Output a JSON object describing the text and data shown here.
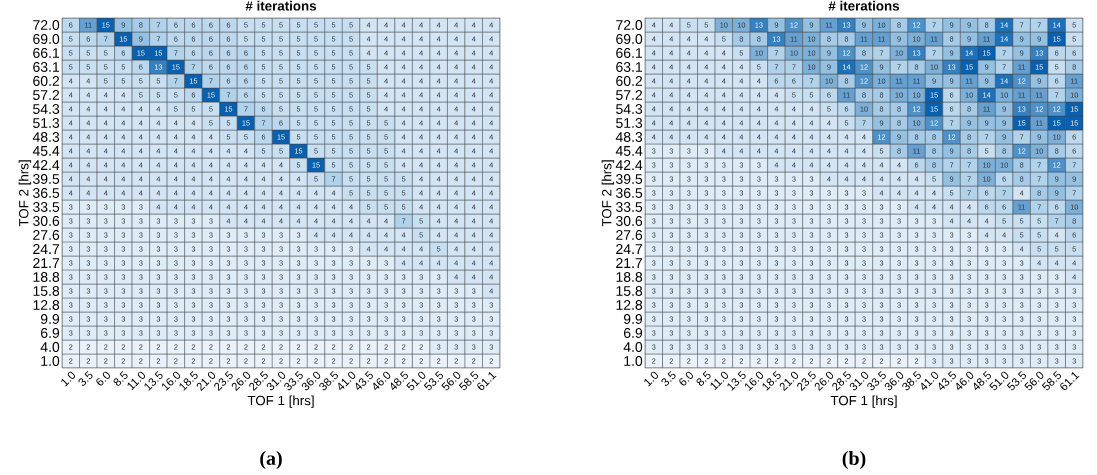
{
  "chart_data": [
    {
      "type": "heatmap",
      "title": "# iterations",
      "xlabel": "TOF 1 [hrs]",
      "ylabel": "TOF 2 [hrs]",
      "annotations": [
        "(a)"
      ],
      "data_labels": true,
      "categories": [
        "1.0",
        "3.5",
        "6.0",
        "8.5",
        "11.0",
        "13.5",
        "16.0",
        "18.5",
        "21.0",
        "23.5",
        "26.0",
        "28.5",
        "31.0",
        "33.5",
        "36.0",
        "38.5",
        "41.0",
        "43.5",
        "46.0",
        "48.5",
        "51.0",
        "53.5",
        "56.0",
        "58.5",
        "61.1"
      ],
      "y_categories": [
        "72.0",
        "69.0",
        "66.1",
        "63.1",
        "60.2",
        "57.2",
        "54.3",
        "51.3",
        "48.3",
        "45.4",
        "42.4",
        "39.5",
        "36.5",
        "33.5",
        "30.6",
        "27.6",
        "24.7",
        "21.7",
        "18.8",
        "15.8",
        "12.8",
        "9.9",
        "6.9",
        "4.0",
        "1.0"
      ],
      "cells": [
        [
          6,
          11,
          15,
          9,
          8,
          7,
          6,
          6,
          6,
          6,
          5,
          5,
          5,
          5,
          5,
          5,
          5,
          4,
          4,
          4,
          4,
          4,
          4,
          4,
          4
        ],
        [
          5,
          6,
          7,
          15,
          9,
          7,
          6,
          6,
          6,
          6,
          5,
          5,
          5,
          5,
          5,
          5,
          5,
          4,
          4,
          4,
          4,
          4,
          4,
          4,
          4
        ],
        [
          5,
          5,
          5,
          6,
          15,
          15,
          7,
          6,
          6,
          6,
          6,
          5,
          5,
          5,
          5,
          5,
          5,
          4,
          4,
          4,
          4,
          4,
          4,
          4,
          4
        ],
        [
          5,
          5,
          5,
          5,
          6,
          13,
          15,
          7,
          6,
          6,
          6,
          5,
          5,
          5,
          5,
          5,
          5,
          5,
          4,
          4,
          4,
          4,
          4,
          4,
          4
        ],
        [
          4,
          4,
          5,
          5,
          5,
          5,
          7,
          15,
          7,
          6,
          6,
          5,
          5,
          5,
          5,
          5,
          5,
          5,
          4,
          4,
          4,
          4,
          4,
          4,
          4
        ],
        [
          4,
          4,
          4,
          4,
          5,
          5,
          5,
          6,
          15,
          7,
          6,
          5,
          5,
          5,
          5,
          5,
          5,
          5,
          4,
          4,
          4,
          4,
          4,
          4,
          4
        ],
        [
          4,
          4,
          4,
          4,
          4,
          4,
          5,
          5,
          5,
          15,
          7,
          6,
          5,
          5,
          5,
          5,
          5,
          5,
          4,
          4,
          4,
          4,
          4,
          4,
          4
        ],
        [
          4,
          4,
          4,
          4,
          4,
          4,
          4,
          4,
          5,
          5,
          15,
          7,
          6,
          5,
          5,
          5,
          5,
          5,
          5,
          4,
          4,
          4,
          4,
          4,
          4
        ],
        [
          4,
          4,
          4,
          4,
          4,
          4,
          4,
          4,
          4,
          5,
          5,
          6,
          15,
          5,
          5,
          5,
          5,
          5,
          5,
          4,
          4,
          4,
          4,
          4,
          4
        ],
        [
          4,
          4,
          4,
          4,
          4,
          4,
          4,
          4,
          4,
          4,
          4,
          5,
          5,
          15,
          5,
          5,
          5,
          5,
          5,
          4,
          4,
          4,
          4,
          4,
          4
        ],
        [
          4,
          4,
          4,
          4,
          4,
          4,
          4,
          4,
          4,
          4,
          4,
          4,
          4,
          5,
          15,
          5,
          5,
          5,
          5,
          4,
          4,
          4,
          4,
          4,
          4
        ],
        [
          4,
          4,
          4,
          4,
          4,
          4,
          4,
          4,
          4,
          4,
          4,
          4,
          4,
          4,
          5,
          7,
          5,
          5,
          5,
          5,
          4,
          4,
          4,
          4,
          4
        ],
        [
          4,
          4,
          4,
          4,
          4,
          4,
          4,
          4,
          4,
          4,
          4,
          4,
          4,
          4,
          4,
          4,
          5,
          5,
          5,
          5,
          4,
          4,
          4,
          4,
          4
        ],
        [
          3,
          3,
          3,
          3,
          3,
          4,
          4,
          4,
          4,
          4,
          4,
          4,
          4,
          4,
          4,
          4,
          4,
          5,
          5,
          5,
          4,
          4,
          4,
          4,
          4
        ],
        [
          3,
          3,
          3,
          3,
          3,
          3,
          3,
          3,
          3,
          4,
          4,
          4,
          4,
          4,
          4,
          4,
          4,
          4,
          4,
          7,
          5,
          4,
          4,
          4,
          4
        ],
        [
          3,
          3,
          3,
          3,
          3,
          3,
          3,
          3,
          3,
          3,
          3,
          3,
          3,
          3,
          4,
          4,
          4,
          4,
          4,
          4,
          5,
          4,
          4,
          4,
          4
        ],
        [
          3,
          3,
          3,
          3,
          3,
          3,
          3,
          3,
          3,
          3,
          3,
          3,
          3,
          3,
          3,
          3,
          3,
          4,
          4,
          4,
          4,
          5,
          4,
          4,
          4
        ],
        [
          3,
          3,
          3,
          3,
          3,
          3,
          3,
          3,
          3,
          3,
          3,
          3,
          3,
          3,
          3,
          3,
          3,
          3,
          3,
          4,
          4,
          4,
          4,
          4,
          4
        ],
        [
          3,
          3,
          3,
          3,
          3,
          3,
          3,
          3,
          3,
          3,
          3,
          3,
          3,
          3,
          3,
          3,
          3,
          3,
          3,
          3,
          3,
          3,
          4,
          4,
          4
        ],
        [
          3,
          3,
          3,
          3,
          3,
          3,
          3,
          3,
          3,
          3,
          3,
          3,
          3,
          3,
          3,
          3,
          3,
          3,
          3,
          3,
          3,
          3,
          3,
          3,
          4
        ],
        [
          3,
          3,
          3,
          3,
          3,
          3,
          3,
          3,
          3,
          3,
          3,
          3,
          3,
          3,
          3,
          3,
          3,
          3,
          3,
          3,
          3,
          3,
          3,
          3,
          3
        ],
        [
          3,
          3,
          3,
          3,
          3,
          3,
          3,
          3,
          3,
          3,
          3,
          3,
          3,
          3,
          3,
          3,
          3,
          3,
          3,
          3,
          3,
          3,
          3,
          3,
          3
        ],
        [
          3,
          3,
          3,
          3,
          3,
          3,
          3,
          3,
          3,
          3,
          3,
          3,
          3,
          3,
          3,
          3,
          3,
          3,
          3,
          3,
          3,
          3,
          3,
          3,
          3
        ],
        [
          2,
          2,
          2,
          2,
          2,
          2,
          2,
          2,
          2,
          2,
          2,
          2,
          2,
          2,
          2,
          2,
          2,
          2,
          2,
          2,
          2,
          3,
          3,
          3,
          3
        ],
        [
          2,
          2,
          2,
          2,
          2,
          2,
          2,
          2,
          2,
          2,
          2,
          2,
          2,
          2,
          2,
          2,
          2,
          2,
          2,
          2,
          2,
          2,
          2,
          2,
          2
        ]
      ]
    },
    {
      "type": "heatmap",
      "title": "# iterations",
      "xlabel": "TOF 1 [hrs]",
      "ylabel": "TOF 2 [hrs]",
      "annotations": [
        "(b)"
      ],
      "data_labels": true,
      "categories": [
        "1.0",
        "3.5",
        "6.0",
        "8.5",
        "11.0",
        "13.5",
        "16.0",
        "18.5",
        "21.0",
        "23.5",
        "26.0",
        "28.5",
        "31.0",
        "33.5",
        "36.0",
        "38.5",
        "41.0",
        "43.5",
        "46.0",
        "48.5",
        "51.0",
        "53.5",
        "56.0",
        "58.5",
        "61.1"
      ],
      "y_categories": [
        "72.0",
        "69.0",
        "66.1",
        "63.1",
        "60.2",
        "57.2",
        "54.3",
        "51.3",
        "48.3",
        "45.4",
        "42.4",
        "39.5",
        "36.5",
        "33.5",
        "30.6",
        "27.6",
        "24.7",
        "21.7",
        "18.8",
        "15.8",
        "12.8",
        "9.9",
        "6.9",
        "4.0",
        "1.0"
      ],
      "cells": [
        [
          4,
          4,
          5,
          5,
          10,
          10,
          13,
          9,
          12,
          9,
          11,
          13,
          9,
          10,
          8,
          12,
          7,
          9,
          9,
          8,
          14,
          7,
          7,
          14,
          5
        ],
        [
          4,
          4,
          4,
          4,
          5,
          8,
          8,
          13,
          11,
          10,
          8,
          8,
          11,
          11,
          9,
          10,
          11,
          8,
          9,
          11,
          14,
          9,
          9,
          15,
          5
        ],
        [
          4,
          4,
          4,
          4,
          4,
          5,
          10,
          7,
          10,
          10,
          9,
          12,
          8,
          7,
          10,
          13,
          7,
          9,
          14,
          15,
          7,
          9,
          13,
          6,
          6
        ],
        [
          4,
          4,
          4,
          4,
          4,
          4,
          5,
          7,
          7,
          10,
          9,
          14,
          12,
          9,
          7,
          8,
          10,
          13,
          15,
          9,
          7,
          11,
          15,
          5,
          8
        ],
        [
          4,
          4,
          4,
          4,
          4,
          4,
          4,
          6,
          6,
          7,
          10,
          8,
          12,
          10,
          11,
          11,
          9,
          9,
          11,
          9,
          14,
          12,
          9,
          6,
          11
        ],
        [
          4,
          4,
          4,
          4,
          4,
          4,
          4,
          4,
          5,
          5,
          6,
          11,
          8,
          8,
          10,
          10,
          15,
          6,
          10,
          14,
          10,
          11,
          11,
          7,
          10
        ],
        [
          4,
          4,
          4,
          4,
          4,
          4,
          4,
          4,
          4,
          4,
          5,
          6,
          10,
          8,
          8,
          12,
          15,
          6,
          8,
          11,
          9,
          13,
          12,
          12,
          15
        ],
        [
          4,
          4,
          4,
          4,
          4,
          4,
          4,
          4,
          4,
          4,
          4,
          5,
          7,
          9,
          8,
          10,
          12,
          7,
          9,
          9,
          9,
          15,
          11,
          15,
          15
        ],
        [
          4,
          4,
          4,
          4,
          4,
          4,
          4,
          4,
          4,
          4,
          4,
          4,
          4,
          12,
          9,
          8,
          8,
          12,
          8,
          7,
          9,
          7,
          9,
          10,
          6
        ],
        [
          3,
          3,
          3,
          3,
          4,
          4,
          4,
          4,
          4,
          4,
          4,
          4,
          4,
          5,
          8,
          11,
          8,
          9,
          8,
          5,
          8,
          12,
          10,
          8,
          6
        ],
        [
          3,
          3,
          3,
          3,
          3,
          3,
          3,
          4,
          4,
          4,
          4,
          4,
          4,
          4,
          4,
          6,
          8,
          7,
          7,
          10,
          10,
          8,
          7,
          12,
          7
        ],
        [
          3,
          3,
          3,
          3,
          3,
          3,
          3,
          3,
          3,
          3,
          4,
          4,
          4,
          4,
          4,
          4,
          5,
          9,
          7,
          10,
          6,
          8,
          7,
          9,
          9
        ],
        [
          3,
          3,
          3,
          3,
          3,
          3,
          3,
          3,
          3,
          3,
          3,
          3,
          3,
          4,
          4,
          4,
          4,
          5,
          7,
          6,
          7,
          4,
          8,
          9,
          7
        ],
        [
          3,
          3,
          3,
          3,
          3,
          3,
          3,
          3,
          3,
          3,
          3,
          3,
          3,
          3,
          3,
          4,
          4,
          4,
          4,
          6,
          6,
          11,
          7,
          6,
          10
        ],
        [
          3,
          3,
          3,
          3,
          3,
          3,
          3,
          3,
          3,
          3,
          3,
          3,
          3,
          3,
          3,
          3,
          3,
          4,
          4,
          4,
          5,
          5,
          5,
          7,
          8
        ],
        [
          3,
          3,
          3,
          3,
          3,
          3,
          3,
          3,
          3,
          3,
          3,
          3,
          3,
          3,
          3,
          3,
          3,
          3,
          3,
          4,
          4,
          5,
          5,
          4,
          6
        ],
        [
          3,
          3,
          3,
          3,
          3,
          3,
          3,
          3,
          3,
          3,
          3,
          3,
          3,
          3,
          3,
          3,
          3,
          3,
          3,
          3,
          3,
          4,
          5,
          5,
          5
        ],
        [
          3,
          3,
          3,
          3,
          3,
          3,
          3,
          3,
          3,
          3,
          3,
          3,
          3,
          3,
          3,
          3,
          3,
          3,
          3,
          3,
          3,
          3,
          4,
          4,
          4
        ],
        [
          3,
          3,
          3,
          3,
          3,
          3,
          3,
          3,
          3,
          3,
          3,
          3,
          3,
          3,
          3,
          3,
          3,
          3,
          3,
          3,
          3,
          3,
          3,
          3,
          4
        ],
        [
          3,
          3,
          3,
          3,
          3,
          3,
          3,
          3,
          3,
          3,
          3,
          3,
          3,
          3,
          3,
          3,
          3,
          3,
          3,
          3,
          3,
          3,
          3,
          3,
          3
        ],
        [
          3,
          3,
          3,
          3,
          3,
          3,
          3,
          3,
          3,
          3,
          3,
          3,
          3,
          3,
          3,
          3,
          3,
          3,
          3,
          3,
          3,
          3,
          3,
          3,
          3
        ],
        [
          3,
          3,
          3,
          3,
          3,
          3,
          3,
          3,
          3,
          3,
          3,
          3,
          3,
          3,
          3,
          3,
          3,
          3,
          3,
          3,
          3,
          3,
          3,
          3,
          3
        ],
        [
          3,
          3,
          3,
          3,
          3,
          3,
          3,
          3,
          3,
          3,
          3,
          3,
          3,
          3,
          3,
          3,
          3,
          3,
          3,
          3,
          3,
          3,
          3,
          3,
          3
        ],
        [
          3,
          3,
          3,
          3,
          3,
          3,
          3,
          3,
          3,
          3,
          3,
          3,
          3,
          3,
          3,
          3,
          3,
          3,
          3,
          3,
          3,
          3,
          3,
          3,
          3
        ],
        [
          2,
          2,
          2,
          2,
          2,
          2,
          2,
          2,
          2,
          2,
          2,
          2,
          2,
          2,
          2,
          2,
          3,
          3,
          3,
          3,
          3,
          3,
          3,
          3,
          3
        ]
      ]
    }
  ]
}
